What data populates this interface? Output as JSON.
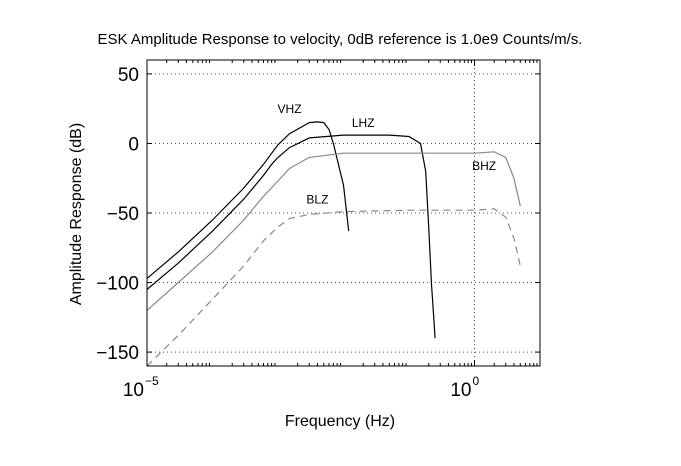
{
  "chart_data": {
    "type": "line",
    "title": "ESK Amplitude Response to velocity, 0dB reference is 1.0e9 Counts/m/s.",
    "xlabel": "Frequency (Hz)",
    "ylabel": "Amplitude Response (dB)",
    "x_scale": "log",
    "xlim": [
      1e-05,
      10
    ],
    "ylim": [
      -160,
      60
    ],
    "grid": true,
    "x_ticks": [
      {
        "value": 1e-05,
        "base": "10",
        "exp": "−5"
      },
      {
        "value": 1,
        "base": "10",
        "exp": "0"
      }
    ],
    "y_ticks": [
      {
        "value": 50,
        "label": "50"
      },
      {
        "value": 0,
        "label": "0"
      },
      {
        "value": -50,
        "label": "−50"
      },
      {
        "value": -100,
        "label": "−100"
      },
      {
        "value": -150,
        "label": "−150"
      }
    ],
    "series": [
      {
        "name": "VHZ",
        "color": "#000000",
        "dash": "",
        "label_at": [
          0.0015,
          22
        ],
        "x": [
          1e-05,
          3e-05,
          0.0001,
          0.0003,
          0.0006,
          0.0008,
          0.001,
          0.0015,
          0.003,
          0.004,
          0.005,
          0.006,
          0.007,
          0.01,
          0.012
        ],
        "y": [
          -97,
          -78,
          -55,
          -32,
          -15,
          -7,
          -1,
          7,
          15,
          15.5,
          15,
          10,
          0,
          -30,
          -63
        ]
      },
      {
        "name": "LHZ",
        "color": "#000000",
        "dash": "",
        "label_at": [
          0.02,
          12
        ],
        "x": [
          1e-05,
          3e-05,
          0.0001,
          0.0003,
          0.0006,
          0.0008,
          0.001,
          0.0015,
          0.003,
          0.01,
          0.05,
          0.1,
          0.15,
          0.18,
          0.2,
          0.22,
          0.25
        ],
        "y": [
          -105,
          -86,
          -63,
          -40,
          -23,
          -15,
          -10,
          -3,
          4,
          6,
          6,
          5,
          0,
          -20,
          -60,
          -100,
          -140
        ]
      },
      {
        "name": "BHZ",
        "color": "#888888",
        "dash": "",
        "label_at": [
          1.4,
          -19
        ],
        "x": [
          1e-05,
          3e-05,
          0.0001,
          0.0003,
          0.0006,
          0.001,
          0.0015,
          0.003,
          0.01,
          0.1,
          1,
          2,
          3,
          4,
          5
        ],
        "y": [
          -120,
          -100,
          -78,
          -55,
          -38,
          -27,
          -18,
          -10,
          -7,
          -7,
          -7,
          -6,
          -10,
          -25,
          -45
        ]
      },
      {
        "name": "BLZ",
        "color": "#888888",
        "dash": "7 5",
        "label_at": [
          0.004,
          -43
        ],
        "x": [
          1e-05,
          3e-05,
          0.0001,
          0.0003,
          0.0006,
          0.001,
          0.0015,
          0.003,
          0.01,
          0.1,
          1,
          2,
          3,
          4,
          5
        ],
        "y": [
          -160,
          -138,
          -112,
          -88,
          -70,
          -60,
          -54,
          -51,
          -49,
          -48,
          -48,
          -47,
          -53,
          -68,
          -88
        ]
      }
    ]
  }
}
